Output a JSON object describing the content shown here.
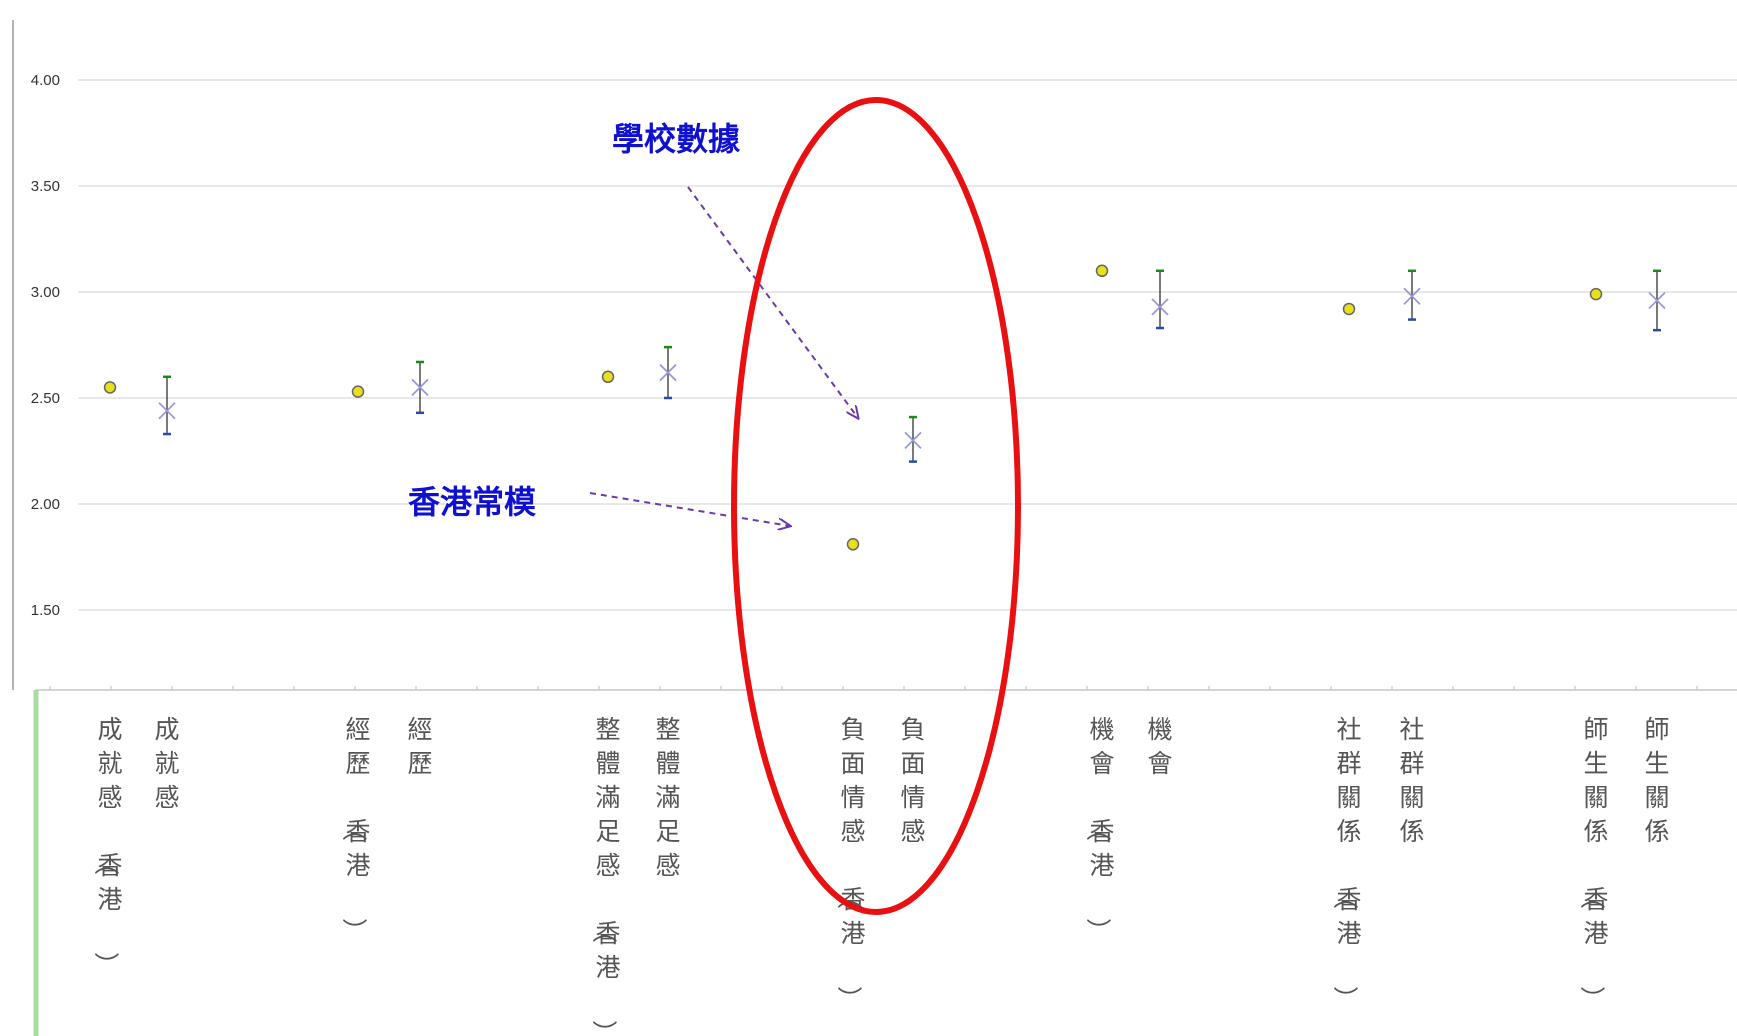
{
  "chart_data": {
    "type": "scatter",
    "ylim": [
      1.2,
      4.1
    ],
    "yticks": [
      "1.50",
      "2.00",
      "2.50",
      "3.00",
      "3.50",
      "4.00"
    ],
    "grid": true,
    "series": [
      {
        "marker": "yellow-circle",
        "color": "#e8e01a",
        "points": [
          {
            "category": "成就感（香港）",
            "y": 2.55
          },
          {
            "category": "經歷（香港）",
            "y": 2.53
          },
          {
            "category": "整體滿足感（香港）",
            "y": 2.6
          },
          {
            "category": "負面情感（香港）",
            "y": 1.81
          },
          {
            "category": "機會（香港）",
            "y": 3.1
          },
          {
            "category": "社群關係（香港）",
            "y": 2.92
          },
          {
            "category": "師生關係（香港）",
            "y": 2.99
          }
        ]
      },
      {
        "marker": "x-with-error-bar",
        "color": "#9a9ad8",
        "points": [
          {
            "category": "成就感",
            "y": 2.44,
            "low": 2.33,
            "high": 2.6
          },
          {
            "category": "經歷",
            "y": 2.55,
            "low": 2.43,
            "high": 2.67
          },
          {
            "category": "整體滿足感",
            "y": 2.62,
            "low": 2.5,
            "high": 2.74
          },
          {
            "category": "負面情感",
            "y": 2.3,
            "low": 2.2,
            "high": 2.41
          },
          {
            "category": "機會",
            "y": 2.93,
            "low": 2.83,
            "high": 3.1
          },
          {
            "category": "社群關係",
            "y": 2.98,
            "low": 2.87,
            "high": 3.1
          },
          {
            "category": "師生關係",
            "y": 2.96,
            "low": 2.82,
            "high": 3.1
          }
        ]
      }
    ],
    "x_labels": [
      "成就感（香港）",
      "成就感",
      "經歷（香港）",
      "經歷",
      "整體滿足感（香港）",
      "整體滿足感",
      "負面情感（香港）",
      "負面情感",
      "機會（香港）",
      "機會",
      "社群關係（香港）",
      "社群關係",
      "師生關係（香港）",
      "師生關係"
    ],
    "annotations": [
      {
        "text": "學校數據",
        "color": "#1010d0"
      },
      {
        "text": "香港常模",
        "color": "#1010d0"
      }
    ],
    "highlight": {
      "shape": "ellipse",
      "color": "#e81010",
      "around": "負面情感"
    }
  }
}
